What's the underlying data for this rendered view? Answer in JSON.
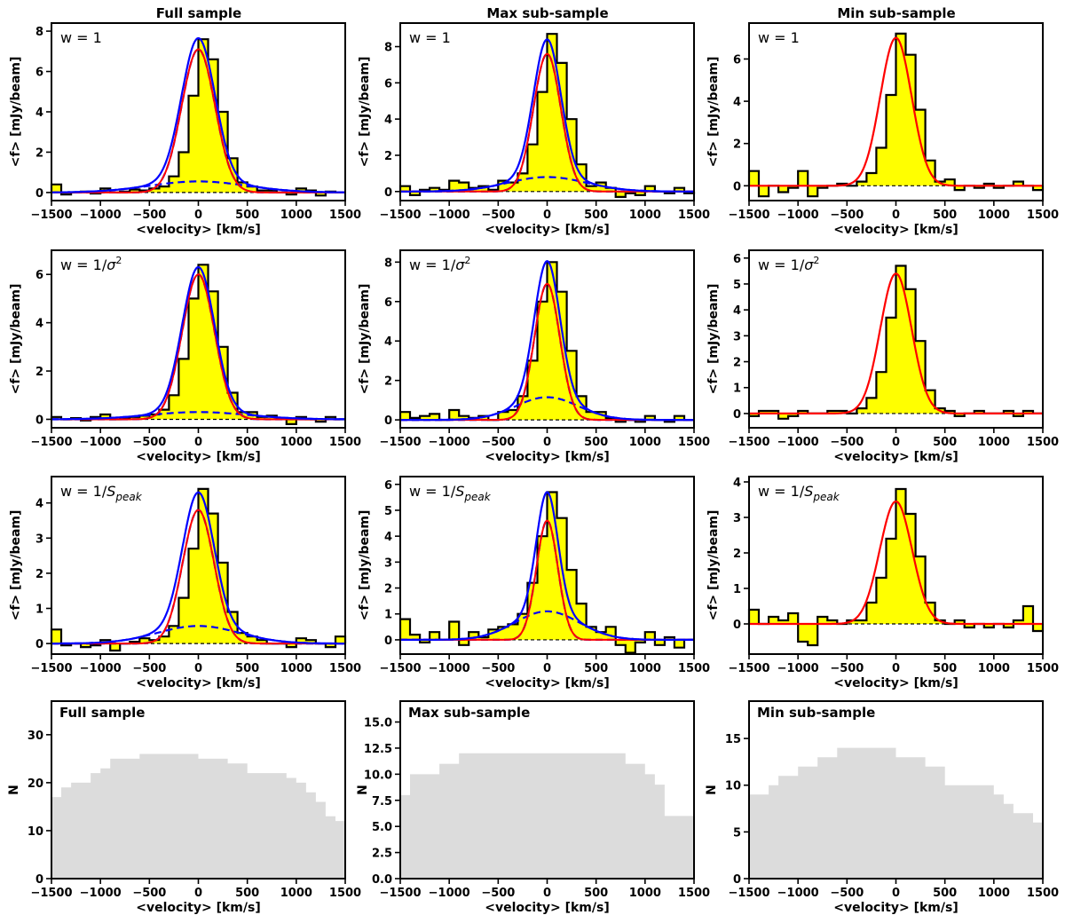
{
  "figure": {
    "column_titles": [
      "Full sample",
      "Max sub-sample",
      "Min sub-sample"
    ]
  },
  "chart_data": [
    {
      "id": "full-w1",
      "type": "line",
      "title": "Full sample",
      "annotation": "w = 1",
      "xlabel": "<velocity> [km/s]",
      "ylabel": "<f> [mJy/beam]",
      "xlim": [
        -1500,
        1500
      ],
      "ylim": [
        -0.4,
        8.4
      ],
      "xticks": [
        -1500,
        -1000,
        -500,
        0,
        500,
        1000,
        1500
      ],
      "yticks": [
        0,
        2,
        4,
        6,
        8
      ],
      "bin_width": 100,
      "x": [
        -1500,
        -1400,
        -1300,
        -1200,
        -1100,
        -1000,
        -900,
        -800,
        -700,
        -600,
        -500,
        -400,
        -300,
        -200,
        -100,
        0,
        100,
        200,
        300,
        400,
        500,
        600,
        700,
        800,
        900,
        1000,
        1100,
        1200,
        1300,
        1400
      ],
      "values": [
        0.4,
        -0.1,
        0.0,
        0.05,
        -0.05,
        0.2,
        0.0,
        0.05,
        0.15,
        0.1,
        0.2,
        0.3,
        0.8,
        2.0,
        4.8,
        7.6,
        6.6,
        4.0,
        1.7,
        0.5,
        0.3,
        0.1,
        0.1,
        0.0,
        -0.1,
        0.2,
        0.1,
        -0.15,
        0.05,
        0.0
      ],
      "fit": {
        "color_total": "#ff0000",
        "color_model": "#0000ff",
        "components": [
          {
            "amp": 7.1,
            "sigma": 170
          },
          {
            "amp": 0.55,
            "sigma": 500
          }
        ]
      }
    },
    {
      "id": "max-w1",
      "type": "line",
      "title": "Max sub-sample",
      "annotation": "w = 1",
      "xlabel": "<velocity> [km/s]",
      "ylabel": "<f> [mJy/beam]",
      "xlim": [
        -1500,
        1500
      ],
      "ylim": [
        -0.5,
        9.3
      ],
      "xticks": [
        -1500,
        -1000,
        -500,
        0,
        500,
        1000,
        1500
      ],
      "yticks": [
        0,
        2,
        4,
        6,
        8
      ],
      "bin_width": 100,
      "x": [
        -1500,
        -1400,
        -1300,
        -1200,
        -1100,
        -1000,
        -900,
        -800,
        -700,
        -600,
        -500,
        -400,
        -300,
        -200,
        -100,
        0,
        100,
        200,
        300,
        400,
        500,
        600,
        700,
        800,
        900,
        1000,
        1100,
        1200,
        1300,
        1400
      ],
      "values": [
        0.3,
        -0.2,
        0.1,
        0.2,
        0.1,
        0.6,
        0.5,
        0.2,
        0.3,
        0.1,
        0.6,
        0.5,
        1.0,
        2.6,
        5.5,
        8.7,
        7.1,
        4.0,
        1.5,
        0.3,
        0.5,
        0.2,
        -0.3,
        -0.1,
        -0.2,
        0.3,
        0.0,
        -0.1,
        0.2,
        -0.1
      ],
      "fit": {
        "color_total": "#ff0000",
        "color_model": "#0000ff",
        "components": [
          {
            "amp": 7.6,
            "sigma": 140
          },
          {
            "amp": 0.8,
            "sigma": 400
          }
        ]
      }
    },
    {
      "id": "min-w1",
      "type": "line",
      "title": "Min sub-sample",
      "annotation": "w = 1",
      "xlabel": "<velocity> [km/s]",
      "ylabel": "<f> [mJy/beam]",
      "xlim": [
        -1500,
        1500
      ],
      "ylim": [
        -0.7,
        7.7
      ],
      "xticks": [
        -1500,
        -1000,
        -500,
        0,
        500,
        1000,
        1500
      ],
      "yticks": [
        0,
        2,
        4,
        6
      ],
      "bin_width": 100,
      "x": [
        -1500,
        -1400,
        -1300,
        -1200,
        -1100,
        -1000,
        -900,
        -800,
        -700,
        -600,
        -500,
        -400,
        -300,
        -200,
        -100,
        0,
        100,
        200,
        300,
        400,
        500,
        600,
        700,
        800,
        900,
        1000,
        1100,
        1200,
        1300,
        1400
      ],
      "values": [
        0.7,
        -0.5,
        0.0,
        -0.3,
        -0.1,
        0.7,
        -0.5,
        -0.1,
        0.0,
        0.1,
        0.0,
        0.2,
        0.6,
        1.8,
        4.3,
        7.2,
        6.2,
        3.6,
        1.2,
        0.2,
        0.3,
        -0.2,
        0.0,
        -0.1,
        0.1,
        -0.1,
        0.0,
        0.2,
        0.0,
        -0.2
      ],
      "fit": {
        "color_total": "#ff0000",
        "components": [
          {
            "amp": 7.0,
            "sigma": 160
          }
        ]
      }
    },
    {
      "id": "full-wsig",
      "type": "line",
      "title": "Full sample",
      "annotation": "w = 1/σ²",
      "xlabel": "<velocity> [km/s]",
      "ylabel": "<f> [mJy/beam]",
      "xlim": [
        -1500,
        1500
      ],
      "ylim": [
        -0.35,
        7.0
      ],
      "xticks": [
        -1500,
        -1000,
        -500,
        0,
        500,
        1000,
        1500
      ],
      "yticks": [
        0,
        2,
        4,
        6
      ],
      "bin_width": 100,
      "x": [
        -1500,
        -1400,
        -1300,
        -1200,
        -1100,
        -1000,
        -900,
        -800,
        -700,
        -600,
        -500,
        -400,
        -300,
        -200,
        -100,
        0,
        100,
        200,
        300,
        400,
        500,
        600,
        700,
        800,
        900,
        1000,
        1100,
        1200,
        1300,
        1400
      ],
      "values": [
        0.1,
        0.0,
        0.05,
        -0.05,
        0.1,
        0.2,
        0.0,
        0.05,
        0.1,
        0.15,
        0.2,
        0.4,
        1.0,
        2.5,
        5.0,
        6.4,
        5.3,
        3.0,
        1.1,
        0.3,
        0.3,
        0.1,
        0.15,
        0.05,
        -0.2,
        0.1,
        0.0,
        -0.1,
        0.1,
        0.0
      ],
      "fit": {
        "color_total": "#ff0000",
        "color_model": "#0000ff",
        "components": [
          {
            "amp": 6.0,
            "sigma": 165
          },
          {
            "amp": 0.3,
            "sigma": 500
          }
        ]
      }
    },
    {
      "id": "max-wsig",
      "type": "line",
      "title": "Max sub-sample",
      "annotation": "w = 1/σ²",
      "xlabel": "<velocity> [km/s]",
      "ylabel": "<f> [mJy/beam]",
      "xlim": [
        -1500,
        1500
      ],
      "ylim": [
        -0.4,
        8.6
      ],
      "xticks": [
        -1500,
        -1000,
        -500,
        0,
        500,
        1000,
        1500
      ],
      "yticks": [
        0,
        2,
        4,
        6,
        8
      ],
      "bin_width": 100,
      "x": [
        -1500,
        -1400,
        -1300,
        -1200,
        -1100,
        -1000,
        -900,
        -800,
        -700,
        -600,
        -500,
        -400,
        -300,
        -200,
        -100,
        0,
        100,
        200,
        300,
        400,
        500,
        600,
        700,
        800,
        900,
        1000,
        1100,
        1200,
        1300,
        1400
      ],
      "values": [
        0.4,
        0.1,
        0.2,
        0.3,
        0.0,
        0.5,
        0.2,
        0.1,
        0.2,
        0.0,
        0.4,
        0.5,
        1.2,
        3.0,
        6.0,
        8.0,
        6.5,
        3.5,
        1.2,
        0.4,
        0.4,
        0.1,
        -0.1,
        0.0,
        -0.1,
        0.2,
        0.0,
        -0.1,
        0.2,
        0.0
      ],
      "fit": {
        "color_total": "#ff0000",
        "color_model": "#0000ff",
        "components": [
          {
            "amp": 6.9,
            "sigma": 130
          },
          {
            "amp": 1.15,
            "sigma": 320
          }
        ]
      }
    },
    {
      "id": "min-wsig",
      "type": "line",
      "title": "Min sub-sample",
      "annotation": "w = 1/σ²",
      "xlabel": "<velocity> [km/s]",
      "ylabel": "<f> [mJy/beam]",
      "xlim": [
        -1500,
        1500
      ],
      "ylim": [
        -0.55,
        6.3
      ],
      "xticks": [
        -1500,
        -1000,
        -500,
        0,
        500,
        1000,
        1500
      ],
      "yticks": [
        0,
        1,
        2,
        3,
        4,
        5,
        6
      ],
      "bin_width": 100,
      "x": [
        -1500,
        -1400,
        -1300,
        -1200,
        -1100,
        -1000,
        -900,
        -800,
        -700,
        -600,
        -500,
        -400,
        -300,
        -200,
        -100,
        0,
        100,
        200,
        300,
        400,
        500,
        600,
        700,
        800,
        900,
        1000,
        1100,
        1200,
        1300,
        1400
      ],
      "values": [
        -0.1,
        0.1,
        0.1,
        -0.2,
        -0.1,
        0.1,
        0.0,
        0.0,
        0.1,
        0.1,
        0.0,
        0.2,
        0.6,
        1.6,
        3.7,
        5.7,
        4.8,
        2.8,
        0.9,
        0.2,
        0.1,
        -0.1,
        0.0,
        0.1,
        0.0,
        0.0,
        0.1,
        -0.1,
        0.1,
        0.0
      ],
      "fit": {
        "color_total": "#ff0000",
        "components": [
          {
            "amp": 5.4,
            "sigma": 160
          }
        ]
      }
    },
    {
      "id": "full-wspeak",
      "type": "line",
      "title": "Full sample",
      "annotation": "w = 1/S_peak",
      "xlabel": "<velocity> [km/s]",
      "ylabel": "<f> [mJy/beam]",
      "xlim": [
        -1500,
        1500
      ],
      "ylim": [
        -0.3,
        4.75
      ],
      "xticks": [
        -1500,
        -1000,
        -500,
        0,
        500,
        1000,
        1500
      ],
      "yticks": [
        0,
        1,
        2,
        3,
        4
      ],
      "bin_width": 100,
      "x": [
        -1500,
        -1400,
        -1300,
        -1200,
        -1100,
        -1000,
        -900,
        -800,
        -700,
        -600,
        -500,
        -400,
        -300,
        -200,
        -100,
        0,
        100,
        200,
        300,
        400,
        500,
        600,
        700,
        800,
        900,
        1000,
        1100,
        1200,
        1300,
        1400
      ],
      "values": [
        0.4,
        -0.05,
        0.0,
        -0.1,
        -0.05,
        0.1,
        -0.2,
        0.0,
        0.05,
        0.15,
        0.1,
        0.2,
        0.5,
        1.3,
        2.7,
        4.4,
        3.7,
        2.3,
        0.9,
        0.3,
        0.2,
        0.1,
        0.0,
        0.0,
        -0.1,
        0.15,
        0.1,
        0.0,
        -0.1,
        0.2
      ],
      "fit": {
        "color_total": "#ff0000",
        "color_model": "#0000ff",
        "components": [
          {
            "amp": 3.8,
            "sigma": 160
          },
          {
            "amp": 0.5,
            "sigma": 420
          }
        ]
      }
    },
    {
      "id": "max-wspeak",
      "type": "line",
      "title": "Max sub-sample",
      "annotation": "w = 1/S_peak",
      "xlabel": "<velocity> [km/s]",
      "ylabel": "<f> [mJy/beam]",
      "xlim": [
        -1500,
        1500
      ],
      "ylim": [
        -0.55,
        6.3
      ],
      "xticks": [
        -1500,
        -1000,
        -500,
        0,
        500,
        1000,
        1500
      ],
      "yticks": [
        0,
        1,
        2,
        3,
        4,
        5,
        6
      ],
      "bin_width": 100,
      "x": [
        -1500,
        -1400,
        -1300,
        -1200,
        -1100,
        -1000,
        -900,
        -800,
        -700,
        -600,
        -500,
        -400,
        -300,
        -200,
        -100,
        0,
        100,
        200,
        300,
        400,
        500,
        600,
        700,
        800,
        900,
        1000,
        1100,
        1200,
        1300,
        1400
      ],
      "values": [
        0.8,
        0.2,
        -0.1,
        0.3,
        0.0,
        0.7,
        -0.2,
        0.3,
        0.1,
        0.4,
        0.5,
        0.6,
        1.0,
        2.2,
        4.0,
        5.7,
        4.7,
        2.7,
        1.4,
        0.5,
        0.3,
        0.5,
        -0.2,
        -0.5,
        -0.1,
        0.3,
        -0.2,
        0.1,
        -0.3,
        0.0
      ],
      "fit": {
        "color_total": "#ff0000",
        "color_model": "#0000ff",
        "components": [
          {
            "amp": 4.6,
            "sigma": 110
          },
          {
            "amp": 1.1,
            "sigma": 330
          }
        ]
      }
    },
    {
      "id": "min-wspeak",
      "type": "line",
      "title": "Min sub-sample",
      "annotation": "w = 1/S_peak",
      "xlabel": "<velocity> [km/s]",
      "ylabel": "<f> [mJy/beam]",
      "xlim": [
        -1500,
        1500
      ],
      "ylim": [
        -0.85,
        4.15
      ],
      "xticks": [
        -1500,
        -1000,
        -500,
        0,
        500,
        1000,
        1500
      ],
      "yticks": [
        0,
        1,
        2,
        3,
        4
      ],
      "bin_width": 100,
      "x": [
        -1500,
        -1400,
        -1300,
        -1200,
        -1100,
        -1000,
        -900,
        -800,
        -700,
        -600,
        -500,
        -400,
        -300,
        -200,
        -100,
        0,
        100,
        200,
        300,
        400,
        500,
        600,
        700,
        800,
        900,
        1000,
        1100,
        1200,
        1300,
        1400
      ],
      "values": [
        0.4,
        0.0,
        0.2,
        0.1,
        0.3,
        -0.5,
        -0.6,
        0.2,
        0.1,
        0.0,
        0.1,
        0.1,
        0.6,
        1.3,
        2.4,
        3.8,
        3.1,
        1.9,
        0.6,
        0.1,
        0.0,
        0.1,
        -0.1,
        0.0,
        -0.1,
        0.0,
        -0.1,
        0.1,
        0.5,
        -0.2
      ],
      "fit": {
        "color_total": "#ff0000",
        "components": [
          {
            "amp": 3.45,
            "sigma": 165
          }
        ]
      }
    },
    {
      "id": "full-n",
      "type": "area",
      "title": "Full sample",
      "annotation": "Full sample",
      "xlabel": "<velocity> [km/s]",
      "ylabel": "N",
      "xlim": [
        -1500,
        1500
      ],
      "ylim": [
        0,
        37
      ],
      "xticks": [
        -1500,
        -1000,
        -500,
        0,
        500,
        1000,
        1500
      ],
      "yticks": [
        0,
        10,
        20,
        30
      ],
      "bin_width": 100,
      "fill": "#dcdcdc",
      "x": [
        -1500,
        -1400,
        -1300,
        -1200,
        -1100,
        -1000,
        -900,
        -800,
        -700,
        -600,
        -500,
        -400,
        -300,
        -200,
        -100,
        0,
        100,
        200,
        300,
        400,
        500,
        600,
        700,
        800,
        900,
        1000,
        1100,
        1200,
        1300,
        1400
      ],
      "values": [
        17,
        19,
        20,
        20,
        22,
        23,
        25,
        25,
        25,
        26,
        26,
        26,
        26,
        26,
        26,
        25,
        25,
        25,
        24,
        24,
        22,
        22,
        22,
        22,
        21,
        20,
        18,
        16,
        13,
        12
      ]
    },
    {
      "id": "max-n",
      "type": "area",
      "title": "Max sub-sample",
      "annotation": "Max sub-sample",
      "xlabel": "<velocity> [km/s]",
      "ylabel": "N",
      "xlim": [
        -1500,
        1500
      ],
      "ylim": [
        0,
        17
      ],
      "xticks": [
        -1500,
        -1000,
        -500,
        0,
        500,
        1000,
        1500
      ],
      "yticks": [
        0.0,
        2.5,
        5.0,
        7.5,
        10.0,
        12.5,
        15.0
      ],
      "bin_width": 100,
      "fill": "#dcdcdc",
      "x": [
        -1500,
        -1400,
        -1300,
        -1200,
        -1100,
        -1000,
        -900,
        -800,
        -700,
        -600,
        -500,
        -400,
        -300,
        -200,
        -100,
        0,
        100,
        200,
        300,
        400,
        500,
        600,
        700,
        800,
        900,
        1000,
        1100,
        1200,
        1300,
        1400
      ],
      "values": [
        8,
        10,
        10,
        10,
        11,
        11,
        12,
        12,
        12,
        12,
        12,
        12,
        12,
        12,
        12,
        12,
        12,
        12,
        12,
        12,
        12,
        12,
        12,
        11,
        11,
        10,
        9,
        6,
        6,
        6
      ]
    },
    {
      "id": "min-n",
      "type": "area",
      "title": "Min sub-sample",
      "annotation": "Min sub-sample",
      "xlabel": "<velocity> [km/s]",
      "ylabel": "N",
      "xlim": [
        -1500,
        1500
      ],
      "ylim": [
        0,
        19
      ],
      "xticks": [
        -1500,
        -1000,
        -500,
        0,
        500,
        1000,
        1500
      ],
      "yticks": [
        0,
        5,
        10,
        15
      ],
      "bin_width": 100,
      "fill": "#dcdcdc",
      "x": [
        -1500,
        -1400,
        -1300,
        -1200,
        -1100,
        -1000,
        -900,
        -800,
        -700,
        -600,
        -500,
        -400,
        -300,
        -200,
        -100,
        0,
        100,
        200,
        300,
        400,
        500,
        600,
        700,
        800,
        900,
        1000,
        1100,
        1200,
        1300,
        1400
      ],
      "values": [
        9,
        9,
        10,
        11,
        11,
        12,
        12,
        13,
        13,
        14,
        14,
        14,
        14,
        14,
        14,
        13,
        13,
        13,
        12,
        12,
        10,
        10,
        10,
        10,
        10,
        9,
        8,
        7,
        7,
        6
      ]
    }
  ]
}
